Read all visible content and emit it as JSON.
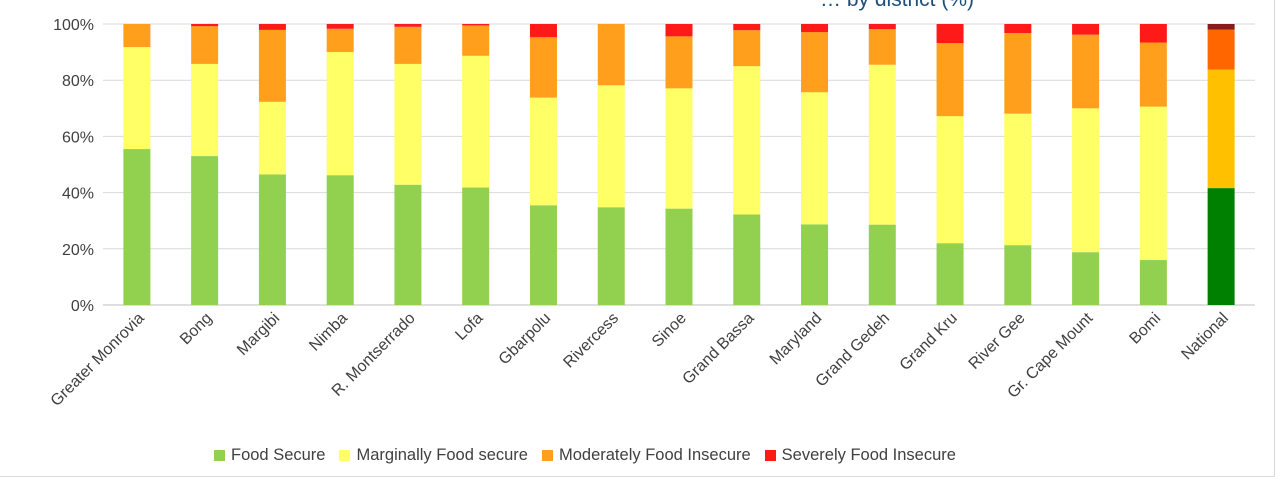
{
  "chart_data": {
    "type": "bar",
    "stacked": true,
    "title": "… by district (%)",
    "categories": [
      "Greater Monrovia",
      "Bong",
      "Margibi",
      "Nimba",
      "R. Montserrado",
      "Lofa",
      "Gbarpolu",
      "Rivercess",
      "Sinoe",
      "Grand Bassa",
      "Maryland",
      "Grand Gedeh",
      "Grand Kru",
      "River Gee",
      "Gr. Cape Mount",
      "Bomi",
      "National"
    ],
    "y_ticks": [
      "0%",
      "20%",
      "40%",
      "60%",
      "80%",
      "100%"
    ],
    "ylim": [
      0,
      100
    ],
    "grid": true,
    "legend_position": "bottom",
    "series": [
      {
        "name": "Food Secure",
        "color": "#92d050",
        "values": [
          55.5,
          53,
          46.5,
          46.2,
          42.8,
          41.8,
          35.5,
          34.8,
          34.3,
          32.2,
          28.7,
          28.6,
          22,
          21.3,
          18.8,
          16,
          41.6
        ]
      },
      {
        "name": "Marginally Food secure",
        "color": "#ffff66",
        "values": [
          36.3,
          32.8,
          25.8,
          43.8,
          43,
          46.9,
          38.3,
          43.4,
          42.8,
          52.8,
          47,
          56.9,
          45.2,
          46.8,
          51.2,
          54.6,
          42.2
        ]
      },
      {
        "name": "Moderately Food Insecure",
        "color": "#ff9f1c",
        "values": [
          8.2,
          13.4,
          25.6,
          8.3,
          13.2,
          10.8,
          21.5,
          21.8,
          18.5,
          12.8,
          21.4,
          12.7,
          26,
          28.7,
          26.2,
          22.8,
          14.2
        ]
      },
      {
        "name": "Severely Food Insecure",
        "color": "#ff1a1a",
        "values": [
          0,
          0.8,
          2.1,
          1.7,
          1,
          0.5,
          4.7,
          0,
          4.4,
          2.2,
          2.9,
          1.8,
          6.8,
          3.2,
          3.8,
          6.6,
          2
        ]
      }
    ],
    "highlight_category": "National",
    "highlight_colors": [
      "#008000",
      "#ffc000",
      "#ff6600",
      "#8b1a1a"
    ]
  }
}
